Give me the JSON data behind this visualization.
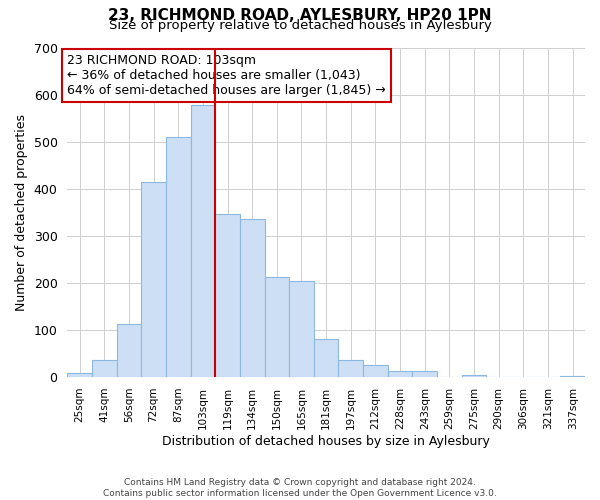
{
  "title": "23, RICHMOND ROAD, AYLESBURY, HP20 1PN",
  "subtitle": "Size of property relative to detached houses in Aylesbury",
  "xlabel": "Distribution of detached houses by size in Aylesbury",
  "ylabel": "Number of detached properties",
  "bar_labels": [
    "25sqm",
    "41sqm",
    "56sqm",
    "72sqm",
    "87sqm",
    "103sqm",
    "119sqm",
    "134sqm",
    "150sqm",
    "165sqm",
    "181sqm",
    "197sqm",
    "212sqm",
    "228sqm",
    "243sqm",
    "259sqm",
    "275sqm",
    "290sqm",
    "306sqm",
    "321sqm",
    "337sqm"
  ],
  "bar_values": [
    8,
    37,
    112,
    415,
    510,
    578,
    346,
    335,
    212,
    204,
    80,
    37,
    26,
    13,
    13,
    0,
    5,
    0,
    0,
    0,
    2
  ],
  "bar_color": "#ccdff5",
  "bar_edge_color": "#8db8e0",
  "vline_color": "#cc0000",
  "vline_x_index": 5,
  "ylim": [
    0,
    700
  ],
  "yticks": [
    0,
    100,
    200,
    300,
    400,
    500,
    600,
    700
  ],
  "annotation_title": "23 RICHMOND ROAD: 103sqm",
  "annotation_line1": "← 36% of detached houses are smaller (1,043)",
  "annotation_line2": "64% of semi-detached houses are larger (1,845) →",
  "annotation_box_color": "#ffffff",
  "annotation_box_edge": "#cc0000",
  "footer1": "Contains HM Land Registry data © Crown copyright and database right 2024.",
  "footer2": "Contains public sector information licensed under the Open Government Licence v3.0.",
  "background_color": "#ffffff",
  "grid_color": "#d0d0d0"
}
